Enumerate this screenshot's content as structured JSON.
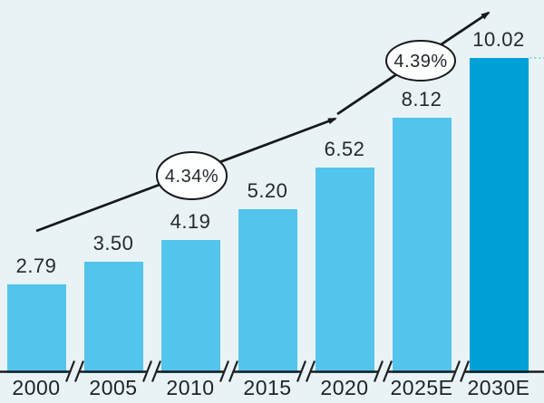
{
  "chart_data": {
    "type": "bar",
    "categories": [
      "2000",
      "2005",
      "2010",
      "2015",
      "2020",
      "2025E",
      "2030E"
    ],
    "values": [
      2.79,
      3.5,
      4.19,
      5.2,
      6.52,
      8.12,
      10.02
    ],
    "value_labels": [
      "2.79",
      "3.50",
      "4.19",
      "5.20",
      "6.52",
      "8.12",
      "10.02"
    ],
    "title": "",
    "xlabel": "",
    "ylabel": "",
    "ylim": [
      0,
      11
    ],
    "grid": false,
    "legend": null,
    "highlight_index": 6,
    "axis_breaks": true,
    "annotations": [
      {
        "type": "growth-rate-bubble",
        "label": "4.34%"
      },
      {
        "type": "growth-rate-bubble",
        "label": "4.39%"
      }
    ]
  },
  "colors": {
    "background": "#e9f3f6",
    "bar": "#53c4ec",
    "bar_highlight": "#00a0d8",
    "text": "#24292d",
    "line": "#15191c",
    "bubble_fill": "#fdfefe",
    "dashed_guide": "#84cfdf"
  }
}
